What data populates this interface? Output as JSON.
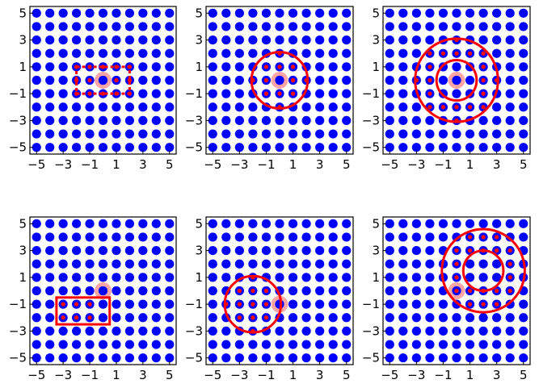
{
  "chart_data": [
    {
      "type": "scatter",
      "title": "",
      "xlabel": "",
      "ylabel": "",
      "xlim": [
        -5.5,
        5.5
      ],
      "ylim": [
        -5.5,
        5.5
      ],
      "xticks": [
        "−5",
        "−3",
        "−1",
        "1",
        "3",
        "5"
      ],
      "yticks": [
        "−5",
        "−3",
        "−1",
        "1",
        "3",
        "5"
      ],
      "grid_points": {
        "from": -5,
        "to": 5,
        "step": 1,
        "color": "#0000ff"
      },
      "center": [
        0,
        0
      ],
      "window": {
        "shape": "rectangle",
        "x": [
          -2,
          2
        ],
        "y": [
          -1,
          1
        ],
        "style": "dashed",
        "color": "#ff0000"
      },
      "neighbors": [
        [
          -2,
          -1
        ],
        [
          -1,
          -1
        ],
        [
          0,
          -1
        ],
        [
          1,
          -1
        ],
        [
          2,
          -1
        ],
        [
          -2,
          0
        ],
        [
          -1,
          0
        ],
        [
          1,
          0
        ],
        [
          2,
          0
        ],
        [
          -2,
          1
        ],
        [
          -1,
          1
        ],
        [
          0,
          1
        ],
        [
          1,
          1
        ],
        [
          2,
          1
        ]
      ]
    },
    {
      "type": "scatter",
      "title": "",
      "xlabel": "",
      "ylabel": "",
      "xlim": [
        -5.5,
        5.5
      ],
      "ylim": [
        -5.5,
        5.5
      ],
      "xticks": [
        "−5",
        "−3",
        "−1",
        "1",
        "3",
        "5"
      ],
      "yticks": [
        "−5",
        "−3",
        "−1",
        "1",
        "3",
        "5"
      ],
      "grid_points": {
        "from": -5,
        "to": 5,
        "step": 1,
        "color": "#0000ff"
      },
      "center": [
        0,
        0
      ],
      "window": {
        "shape": "circle",
        "cx": 0,
        "cy": 0,
        "r": 2.1,
        "color": "#ff0000"
      },
      "neighbors": [
        [
          -2,
          0
        ],
        [
          2,
          0
        ],
        [
          0,
          -2
        ],
        [
          0,
          2
        ],
        [
          -1,
          -1
        ],
        [
          -1,
          0
        ],
        [
          -1,
          1
        ],
        [
          0,
          -1
        ],
        [
          0,
          1
        ],
        [
          1,
          -1
        ],
        [
          1,
          0
        ],
        [
          1,
          1
        ]
      ]
    },
    {
      "type": "scatter",
      "title": "",
      "xlabel": "",
      "ylabel": "",
      "xlim": [
        -5.5,
        5.5
      ],
      "ylim": [
        -5.5,
        5.5
      ],
      "xticks": [
        "−5",
        "−3",
        "−1",
        "1",
        "3",
        "5"
      ],
      "yticks": [
        "−5",
        "−3",
        "−1",
        "1",
        "3",
        "5"
      ],
      "grid_points": {
        "from": -5,
        "to": 5,
        "step": 1,
        "color": "#0000ff"
      },
      "center": [
        0,
        0
      ],
      "window": {
        "shape": "annulus",
        "cx": 0,
        "cy": 0,
        "r_inner": 1.5,
        "r_outer": 3.1,
        "color": "#ff0000"
      },
      "neighbors": [
        [
          0,
          3
        ],
        [
          0,
          -3
        ],
        [
          3,
          0
        ],
        [
          -3,
          0
        ],
        [
          1,
          2
        ],
        [
          2,
          1
        ],
        [
          1,
          -2
        ],
        [
          2,
          -1
        ],
        [
          -1,
          2
        ],
        [
          -2,
          1
        ],
        [
          -1,
          -2
        ],
        [
          -2,
          -1
        ],
        [
          2,
          2
        ],
        [
          -2,
          2
        ],
        [
          2,
          -2
        ],
        [
          -2,
          -2
        ],
        [
          0,
          2
        ],
        [
          0,
          -2
        ],
        [
          2,
          0
        ],
        [
          -2,
          0
        ]
      ]
    },
    {
      "type": "scatter",
      "title": "",
      "xlabel": "",
      "ylabel": "",
      "xlim": [
        -5.5,
        5.5
      ],
      "ylim": [
        -5.5,
        5.5
      ],
      "xticks": [
        "−5",
        "−3",
        "−1",
        "1",
        "3",
        "5"
      ],
      "yticks": [
        "−5",
        "−3",
        "−1",
        "1",
        "3",
        "5"
      ],
      "grid_points": {
        "from": -5,
        "to": 5,
        "step": 1,
        "color": "#0000ff"
      },
      "center": [
        0,
        0
      ],
      "window": {
        "shape": "rectangle",
        "x": [
          -3.5,
          0.5
        ],
        "y": [
          -2.5,
          -0.5
        ],
        "style": "solid",
        "color": "#ff0000"
      },
      "neighbors": [
        [
          -3,
          -1
        ],
        [
          -2,
          -1
        ],
        [
          -1,
          -1
        ],
        [
          -3,
          -2
        ],
        [
          -2,
          -2
        ],
        [
          -1,
          -2
        ]
      ]
    },
    {
      "type": "scatter",
      "title": "",
      "xlabel": "",
      "ylabel": "",
      "xlim": [
        -5.5,
        5.5
      ],
      "ylim": [
        -5.5,
        5.5
      ],
      "xticks": [
        "−5",
        "−3",
        "−1",
        "1",
        "3",
        "5"
      ],
      "yticks": [
        "−5",
        "−3",
        "−1",
        "1",
        "3",
        "5"
      ],
      "grid_points": {
        "from": -5,
        "to": 5,
        "step": 1,
        "color": "#0000ff"
      },
      "center": [
        0,
        -1
      ],
      "window": {
        "shape": "circle",
        "cx": -2,
        "cy": -1,
        "r": 2.1,
        "color": "#ff0000"
      },
      "neighbors": [
        [
          -2,
          1
        ],
        [
          -3,
          0
        ],
        [
          -2,
          0
        ],
        [
          -1,
          0
        ],
        [
          -4,
          -1
        ],
        [
          -3,
          -1
        ],
        [
          -2,
          -1
        ],
        [
          -1,
          -1
        ],
        [
          -3,
          -2
        ],
        [
          -2,
          -2
        ],
        [
          -1,
          -2
        ],
        [
          -2,
          -3
        ]
      ]
    },
    {
      "type": "scatter",
      "title": "",
      "xlabel": "",
      "ylabel": "",
      "xlim": [
        -5.5,
        5.5
      ],
      "ylim": [
        -5.5,
        5.5
      ],
      "xticks": [
        "−5",
        "−3",
        "−1",
        "1",
        "3",
        "5"
      ],
      "yticks": [
        "−5",
        "−3",
        "−1",
        "1",
        "3",
        "5"
      ],
      "grid_points": {
        "from": -5,
        "to": 5,
        "step": 1,
        "color": "#0000ff"
      },
      "center": [
        0,
        0
      ],
      "window": {
        "shape": "annulus",
        "cx": 2,
        "cy": 1.5,
        "r_inner": 1.5,
        "r_outer": 3.1,
        "color": "#ff0000"
      },
      "neighbors": [
        [
          2,
          4
        ],
        [
          1,
          4
        ],
        [
          3,
          4
        ],
        [
          0,
          3
        ],
        [
          4,
          3
        ],
        [
          0,
          2
        ],
        [
          4,
          2
        ],
        [
          0,
          1
        ],
        [
          4,
          1
        ],
        [
          0,
          0
        ],
        [
          4,
          0
        ],
        [
          1,
          -1
        ],
        [
          2,
          -1
        ],
        [
          3,
          -1
        ],
        [
          1,
          3
        ],
        [
          3,
          3
        ],
        [
          1,
          0
        ],
        [
          3,
          0
        ],
        [
          2,
          3
        ],
        [
          2,
          0
        ]
      ]
    }
  ]
}
